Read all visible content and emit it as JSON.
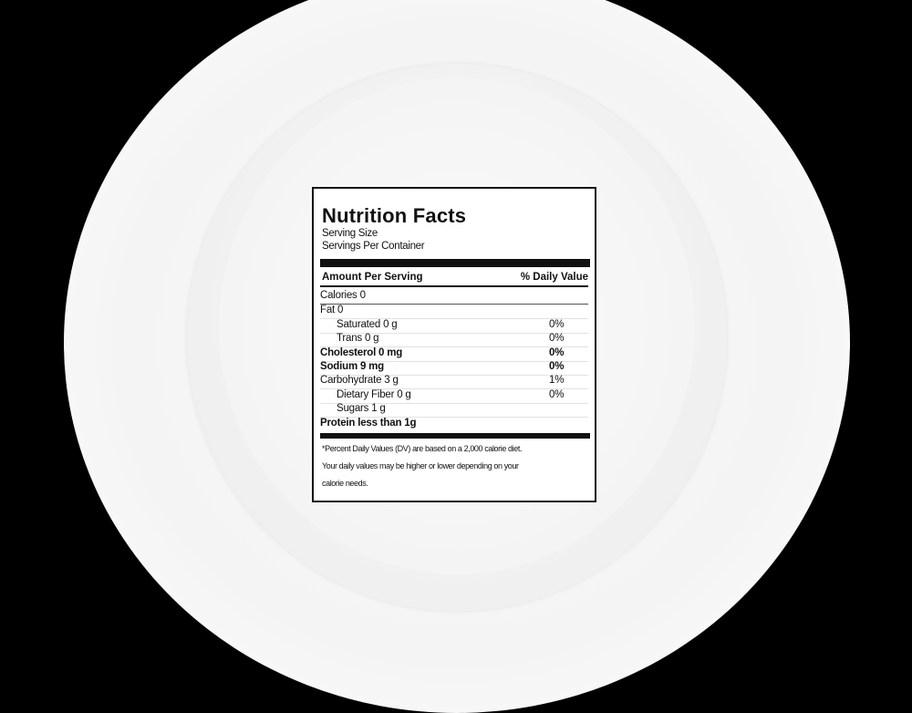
{
  "label": {
    "title": "Nutrition Facts",
    "serving_size": "Serving Size",
    "servings_per_container": "Servings Per Container",
    "amount_header": "Amount Per Serving",
    "dv_header": "% Daily Value",
    "rows": [
      {
        "name": "Calories 0",
        "pct": ""
      },
      {
        "name": "Fat  0",
        "pct": ""
      },
      {
        "name": "Saturated  0 g",
        "pct": "0%"
      },
      {
        "name": "Trans  0 g",
        "pct": "0%"
      },
      {
        "name": "Cholesterol  0 mg",
        "pct": "0%"
      },
      {
        "name": "Sodium  9 mg",
        "pct": "0%"
      },
      {
        "name": "Carbohydrate 3 g",
        "pct": "1%"
      },
      {
        "name": "Dietary Fiber  0 g",
        "pct": "0%"
      },
      {
        "name": "Sugars  1 g",
        "pct": ""
      },
      {
        "name": "Protein less than 1g",
        "pct": ""
      }
    ],
    "footnote_1": "*Percent Daily Values (DV) are based on a 2,000 calorie diet.",
    "footnote_2": "Your daily values may be higher or lower depending on your",
    "footnote_3": "calorie needs."
  }
}
